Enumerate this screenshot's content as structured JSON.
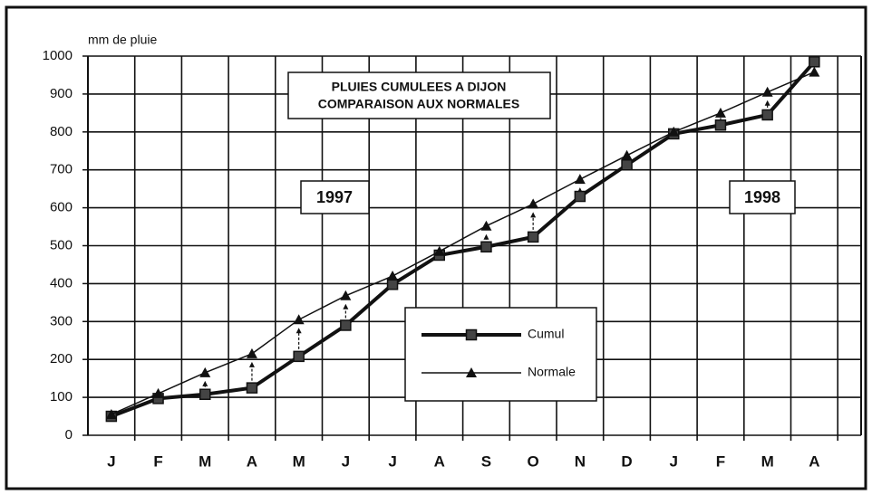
{
  "chart_data": {
    "type": "line",
    "title": [
      "PLUIES CUMULEES A DIJON",
      "COMPARAISON AUX NORMALES"
    ],
    "y_label": "mm de pluie",
    "annotations": [
      "1997",
      "1998"
    ],
    "categories": [
      "J",
      "F",
      "M",
      "A",
      "M",
      "J",
      "J",
      "A",
      "S",
      "O",
      "N",
      "D",
      "J",
      "F",
      "M",
      "A"
    ],
    "series": [
      {
        "name": "Cumul",
        "color": "#111111",
        "marker": "square",
        "values": [
          50,
          97,
          108,
          125,
          208,
          290,
          398,
          475,
          497,
          523,
          630,
          713,
          795,
          818,
          845,
          985
        ]
      },
      {
        "name": "Normale",
        "color": "#111111",
        "marker": "triangle",
        "values": [
          55,
          110,
          165,
          215,
          305,
          368,
          420,
          485,
          552,
          610,
          675,
          738,
          800,
          850,
          905,
          958
        ]
      }
    ],
    "ylim": [
      0,
      1000
    ],
    "yticks": [
      0,
      100,
      200,
      300,
      400,
      500,
      600,
      700,
      800,
      900,
      1000
    ],
    "grid": true
  }
}
